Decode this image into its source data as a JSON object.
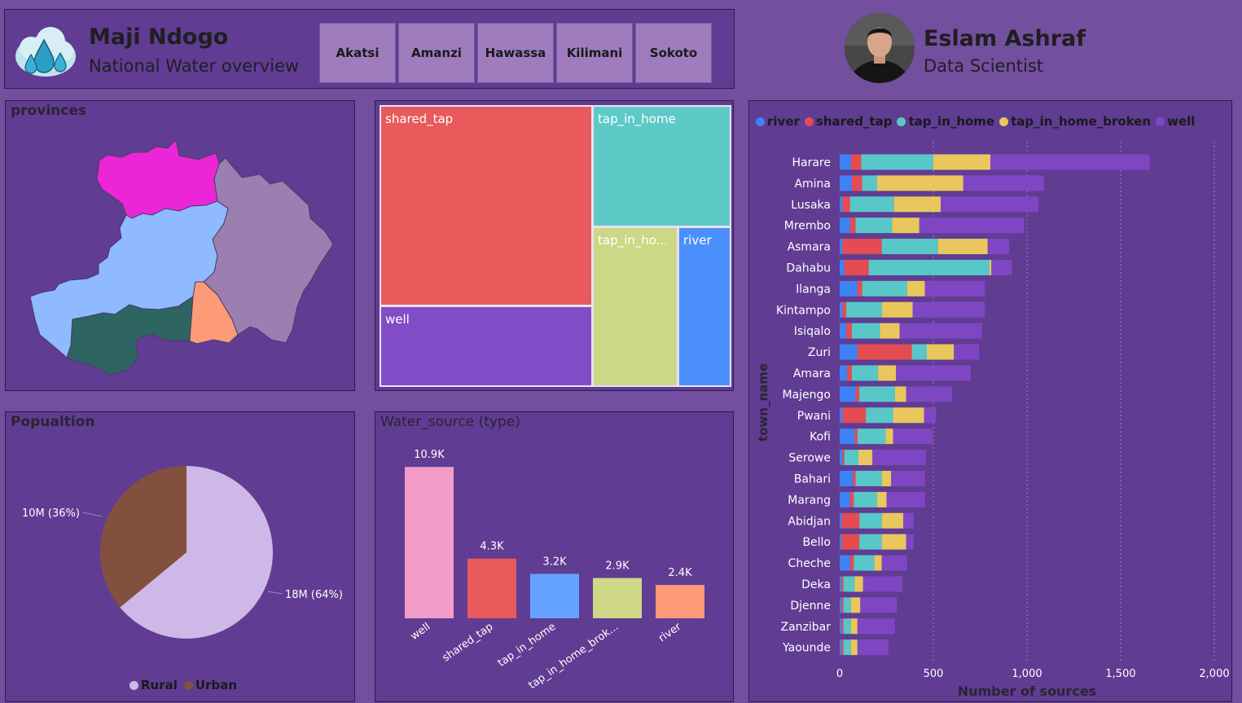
{
  "header": {
    "title": "Maji Ndogo",
    "subtitle": "National Water overview",
    "tabs": [
      {
        "label": "Akatsi"
      },
      {
        "label": "Amanzi"
      },
      {
        "label": "Hawassa"
      },
      {
        "label": "Kilimani"
      },
      {
        "label": "Sokoto"
      }
    ]
  },
  "profile": {
    "name": "Eslam Ashraf",
    "role": "Data Scientist"
  },
  "provinces": {
    "title": "provinces",
    "colors": [
      "#ec26d7",
      "#9a7fb0",
      "#8fbaff",
      "#2e6462",
      "#fd9a78"
    ]
  },
  "treemap": {
    "cells": [
      {
        "label": "shared_tap",
        "color": "#e85a5b"
      },
      {
        "label": "tap_in_home",
        "color": "#5ecac8"
      },
      {
        "label": "well",
        "color": "#814dc6"
      },
      {
        "label": "tap_in_ho...",
        "color": "#cdd886"
      },
      {
        "label": "river",
        "color": "#4b8ffc"
      }
    ]
  },
  "population": {
    "title": "Popualtion",
    "slices": [
      {
        "name": "Rural",
        "label": "18M (64%)",
        "percent": 64,
        "color": "#ceb8e8"
      },
      {
        "name": "Urban",
        "label": "10M (36%)",
        "percent": 36,
        "color": "#84503e"
      }
    ]
  },
  "chart_data": [
    {
      "type": "bar",
      "title": "Water_source (type)",
      "categories": [
        "well",
        "shared_tap",
        "tap_in_home",
        "tap_in_home_brok...",
        "river"
      ],
      "values": [
        10900,
        4300,
        3200,
        2900,
        2400
      ],
      "data_labels": [
        "10.9K",
        "4.3K",
        "3.2K",
        "2.9K",
        "2.4K"
      ],
      "colors": [
        "#f49cc8",
        "#e85a5b",
        "#63a3ff",
        "#cfd886",
        "#fd9a78"
      ],
      "ylim": [
        0,
        11500
      ]
    },
    {
      "type": "bar",
      "orientation": "horizontal",
      "stacked": true,
      "xlabel": "Number of sources",
      "ylabel": "town_name",
      "xlim": [
        0,
        2000
      ],
      "xticks": [
        "0",
        "500",
        "1,000",
        "1,500",
        "2,000"
      ],
      "series_names": [
        "river",
        "shared_tap",
        "tap_in_home",
        "tap_in_home_broken",
        "well"
      ],
      "colors": [
        "#3d82f7",
        "#e44c52",
        "#58c7c8",
        "#e9c75c",
        "#7f46c4"
      ],
      "rows": [
        {
          "town": "Harare",
          "values": [
            60,
            55,
            385,
            305,
            850
          ]
        },
        {
          "town": "Amina",
          "values": [
            65,
            55,
            80,
            460,
            430
          ]
        },
        {
          "town": "Lusaka",
          "values": [
            15,
            40,
            235,
            250,
            520
          ]
        },
        {
          "town": "Mrembo",
          "values": [
            55,
            30,
            195,
            145,
            560
          ]
        },
        {
          "town": "Asmara",
          "values": [
            15,
            210,
            300,
            265,
            115
          ]
        },
        {
          "town": "Dahabu",
          "values": [
            25,
            130,
            645,
            10,
            110
          ]
        },
        {
          "town": "Ilanga",
          "values": [
            95,
            25,
            240,
            95,
            320
          ]
        },
        {
          "town": "Kintampo",
          "values": [
            15,
            20,
            190,
            165,
            385
          ]
        },
        {
          "town": "Isiqalo",
          "values": [
            35,
            30,
            150,
            105,
            440
          ]
        },
        {
          "town": "Zuri",
          "values": [
            95,
            290,
            80,
            145,
            135
          ]
        },
        {
          "town": "Amara",
          "values": [
            40,
            25,
            140,
            95,
            400
          ]
        },
        {
          "town": "Majengo",
          "values": [
            85,
            20,
            190,
            60,
            245
          ]
        },
        {
          "town": "Pwani",
          "values": [
            15,
            125,
            145,
            165,
            65
          ]
        },
        {
          "town": "Kofi",
          "values": [
            80,
            15,
            150,
            40,
            210
          ]
        },
        {
          "town": "Serowe",
          "values": [
            15,
            10,
            75,
            75,
            285
          ]
        },
        {
          "town": "Bahari",
          "values": [
            70,
            15,
            140,
            50,
            180
          ]
        },
        {
          "town": "Marang",
          "values": [
            55,
            20,
            125,
            50,
            205
          ]
        },
        {
          "town": "Abidjan",
          "values": [
            10,
            95,
            120,
            115,
            55
          ]
        },
        {
          "town": "Bello",
          "values": [
            10,
            95,
            120,
            130,
            40
          ]
        },
        {
          "town": "Cheche",
          "values": [
            55,
            20,
            110,
            40,
            135
          ]
        },
        {
          "town": "Deka",
          "values": [
            10,
            10,
            60,
            45,
            210
          ]
        },
        {
          "town": "Djenne",
          "values": [
            10,
            10,
            40,
            50,
            195
          ]
        },
        {
          "town": "Zanzibar",
          "values": [
            10,
            10,
            40,
            35,
            200
          ]
        },
        {
          "town": "Yaounde",
          "values": [
            10,
            10,
            40,
            35,
            165
          ]
        }
      ]
    }
  ]
}
